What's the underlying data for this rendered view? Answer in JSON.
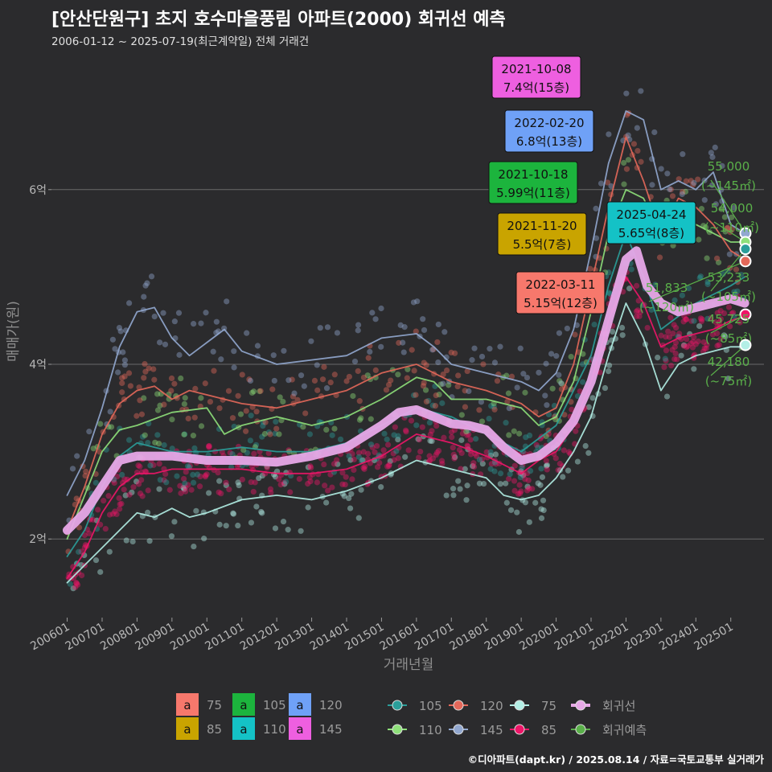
{
  "title": "[안산단원구] 초지 호수마을풍림 아파트(2000) 회귀선 예측",
  "subtitle": "2006-01-12 ~ 2025-07-19(최근계약일) 전체 거래건",
  "credit": "©디아파트(dapt.kr) / 2025.08.14 / 자료=국토교통부 실거래가",
  "chart_data": {
    "type": "line",
    "xlabel": "거래년월",
    "ylabel": "매매가(원)",
    "x_ticks": [
      "200601",
      "200701",
      "200801",
      "200901",
      "201001",
      "201101",
      "201201",
      "201301",
      "201401",
      "201501",
      "201601",
      "201701",
      "201801",
      "201901",
      "202001",
      "202101",
      "202201",
      "202301",
      "202401",
      "202501"
    ],
    "y_ticks": [
      {
        "value": 2,
        "label": "2억"
      },
      {
        "value": 4,
        "label": "4억"
      },
      {
        "value": 6,
        "label": "6억"
      }
    ],
    "ylim": [
      1.1,
      7.6
    ],
    "xlim": [
      2005.55,
      2025.95
    ],
    "grid": "horizontal",
    "series": [
      {
        "name": "75",
        "color": "#b3efe6",
        "points": [
          [
            2006.0,
            1.5
          ],
          [
            2006.5,
            1.7
          ],
          [
            2007.0,
            1.9
          ],
          [
            2007.5,
            2.1
          ],
          [
            2008.0,
            2.3
          ],
          [
            2008.5,
            2.25
          ],
          [
            2009.0,
            2.35
          ],
          [
            2009.5,
            2.25
          ],
          [
            2010.0,
            2.3
          ],
          [
            2011.0,
            2.45
          ],
          [
            2012.0,
            2.5
          ],
          [
            2013.0,
            2.45
          ],
          [
            2014.0,
            2.55
          ],
          [
            2015.0,
            2.7
          ],
          [
            2016.0,
            2.9
          ],
          [
            2017.0,
            2.8
          ],
          [
            2018.0,
            2.7
          ],
          [
            2018.5,
            2.5
          ],
          [
            2019.0,
            2.45
          ],
          [
            2019.5,
            2.5
          ],
          [
            2020.0,
            2.7
          ],
          [
            2020.5,
            3.0
          ],
          [
            2021.0,
            3.4
          ],
          [
            2021.5,
            4.1
          ],
          [
            2022.0,
            4.7
          ],
          [
            2022.5,
            4.3
          ],
          [
            2023.0,
            3.7
          ],
          [
            2023.5,
            4.0
          ],
          [
            2024.0,
            4.1
          ],
          [
            2024.5,
            4.15
          ],
          [
            2025.0,
            4.2
          ],
          [
            2025.4,
            4.2
          ]
        ]
      },
      {
        "name": "85",
        "color": "#ee1568",
        "points": [
          [
            2006.0,
            1.55
          ],
          [
            2006.5,
            1.85
          ],
          [
            2007.0,
            2.3
          ],
          [
            2007.5,
            2.6
          ],
          [
            2008.0,
            2.75
          ],
          [
            2008.5,
            2.75
          ],
          [
            2009.0,
            2.8
          ],
          [
            2010.0,
            2.8
          ],
          [
            2011.0,
            2.8
          ],
          [
            2012.0,
            2.75
          ],
          [
            2013.0,
            2.75
          ],
          [
            2014.0,
            2.8
          ],
          [
            2015.0,
            2.95
          ],
          [
            2016.0,
            3.2
          ],
          [
            2017.0,
            3.1
          ],
          [
            2018.0,
            2.95
          ],
          [
            2019.0,
            2.75
          ],
          [
            2019.5,
            2.9
          ],
          [
            2020.0,
            3.0
          ],
          [
            2020.5,
            3.3
          ],
          [
            2021.0,
            3.8
          ],
          [
            2021.5,
            4.5
          ],
          [
            2022.0,
            5.0
          ],
          [
            2022.5,
            4.7
          ],
          [
            2023.0,
            4.2
          ],
          [
            2023.5,
            4.3
          ],
          [
            2024.0,
            4.35
          ],
          [
            2024.5,
            4.4
          ],
          [
            2025.0,
            4.5
          ],
          [
            2025.4,
            4.55
          ]
        ]
      },
      {
        "name": "105",
        "color": "#2a9e9a",
        "points": [
          [
            2006.0,
            1.8
          ],
          [
            2006.5,
            2.1
          ],
          [
            2007.0,
            2.6
          ],
          [
            2007.5,
            2.95
          ],
          [
            2008.0,
            3.1
          ],
          [
            2009.0,
            3.0
          ],
          [
            2010.0,
            3.0
          ],
          [
            2011.0,
            3.05
          ],
          [
            2012.0,
            3.0
          ],
          [
            2013.0,
            3.0
          ],
          [
            2014.0,
            3.1
          ],
          [
            2015.0,
            3.3
          ],
          [
            2016.0,
            3.5
          ],
          [
            2017.0,
            3.4
          ],
          [
            2018.0,
            3.2
          ],
          [
            2019.0,
            3.0
          ],
          [
            2020.0,
            3.3
          ],
          [
            2021.0,
            4.1
          ],
          [
            2021.5,
            4.9
          ],
          [
            2022.0,
            5.5
          ],
          [
            2022.5,
            5.0
          ],
          [
            2023.0,
            4.4
          ],
          [
            2024.0,
            4.7
          ],
          [
            2025.0,
            4.9
          ],
          [
            2025.4,
            5.0
          ]
        ]
      },
      {
        "name": "110",
        "color": "#8ee07a",
        "points": [
          [
            2006.0,
            2.0
          ],
          [
            2006.5,
            2.5
          ],
          [
            2007.0,
            3.0
          ],
          [
            2007.5,
            3.25
          ],
          [
            2008.0,
            3.3
          ],
          [
            2009.0,
            3.45
          ],
          [
            2010.0,
            3.5
          ],
          [
            2010.5,
            3.2
          ],
          [
            2011.0,
            3.3
          ],
          [
            2012.0,
            3.4
          ],
          [
            2013.0,
            3.3
          ],
          [
            2014.0,
            3.4
          ],
          [
            2015.0,
            3.6
          ],
          [
            2016.0,
            3.85
          ],
          [
            2016.5,
            3.8
          ],
          [
            2017.0,
            3.6
          ],
          [
            2018.0,
            3.6
          ],
          [
            2019.0,
            3.5
          ],
          [
            2019.5,
            3.3
          ],
          [
            2020.0,
            3.4
          ],
          [
            2020.5,
            3.8
          ],
          [
            2021.0,
            4.6
          ],
          [
            2021.5,
            5.5
          ],
          [
            2022.0,
            6.0
          ],
          [
            2022.5,
            5.9
          ],
          [
            2023.0,
            5.5
          ],
          [
            2023.5,
            5.8
          ],
          [
            2024.0,
            5.6
          ],
          [
            2024.5,
            5.5
          ],
          [
            2025.0,
            5.4
          ],
          [
            2025.4,
            5.4
          ]
        ]
      },
      {
        "name": "120",
        "color": "#e4685a",
        "points": [
          [
            2006.0,
            2.1
          ],
          [
            2006.5,
            2.6
          ],
          [
            2007.0,
            3.2
          ],
          [
            2007.5,
            3.55
          ],
          [
            2008.0,
            3.7
          ],
          [
            2008.5,
            3.75
          ],
          [
            2009.0,
            3.6
          ],
          [
            2009.5,
            3.7
          ],
          [
            2010.0,
            3.65
          ],
          [
            2011.0,
            3.55
          ],
          [
            2012.0,
            3.5
          ],
          [
            2013.0,
            3.6
          ],
          [
            2014.0,
            3.7
          ],
          [
            2015.0,
            3.9
          ],
          [
            2016.0,
            4.0
          ],
          [
            2017.0,
            3.8
          ],
          [
            2018.0,
            3.7
          ],
          [
            2019.0,
            3.55
          ],
          [
            2019.5,
            3.4
          ],
          [
            2020.0,
            3.5
          ],
          [
            2020.5,
            4.0
          ],
          [
            2021.0,
            4.9
          ],
          [
            2021.5,
            5.8
          ],
          [
            2022.0,
            6.6
          ],
          [
            2022.5,
            6.1
          ],
          [
            2023.0,
            5.5
          ],
          [
            2023.5,
            5.9
          ],
          [
            2024.0,
            5.8
          ],
          [
            2024.5,
            5.6
          ],
          [
            2025.0,
            5.3
          ],
          [
            2025.4,
            5.2
          ]
        ]
      },
      {
        "name": "145",
        "color": "#92a8d0",
        "points": [
          [
            2006.0,
            2.5
          ],
          [
            2006.5,
            2.9
          ],
          [
            2007.0,
            3.5
          ],
          [
            2007.5,
            4.2
          ],
          [
            2008.0,
            4.6
          ],
          [
            2008.5,
            4.65
          ],
          [
            2009.0,
            4.3
          ],
          [
            2009.5,
            4.1
          ],
          [
            2010.0,
            4.25
          ],
          [
            2010.5,
            4.4
          ],
          [
            2011.0,
            4.15
          ],
          [
            2012.0,
            4.0
          ],
          [
            2013.0,
            4.05
          ],
          [
            2014.0,
            4.1
          ],
          [
            2015.0,
            4.3
          ],
          [
            2016.0,
            4.35
          ],
          [
            2016.5,
            4.2
          ],
          [
            2017.0,
            4.0
          ],
          [
            2018.0,
            3.9
          ],
          [
            2019.0,
            3.8
          ],
          [
            2019.5,
            3.7
          ],
          [
            2020.0,
            3.9
          ],
          [
            2020.5,
            4.4
          ],
          [
            2021.0,
            5.3
          ],
          [
            2021.5,
            6.3
          ],
          [
            2022.0,
            6.9
          ],
          [
            2022.5,
            6.8
          ],
          [
            2023.0,
            6.0
          ],
          [
            2023.5,
            6.1
          ],
          [
            2024.0,
            6.0
          ],
          [
            2024.5,
            6.2
          ],
          [
            2025.0,
            5.6
          ],
          [
            2025.4,
            5.5
          ]
        ]
      },
      {
        "name": "회귀선",
        "color": "#e7a8e8",
        "points": [
          [
            2006.0,
            2.1
          ],
          [
            2006.5,
            2.3
          ],
          [
            2007.0,
            2.6
          ],
          [
            2007.5,
            2.9
          ],
          [
            2008.0,
            2.95
          ],
          [
            2009.0,
            2.95
          ],
          [
            2010.0,
            2.9
          ],
          [
            2011.0,
            2.9
          ],
          [
            2012.0,
            2.88
          ],
          [
            2013.0,
            2.95
          ],
          [
            2014.0,
            3.05
          ],
          [
            2015.0,
            3.3
          ],
          [
            2015.5,
            3.45
          ],
          [
            2016.0,
            3.48
          ],
          [
            2016.5,
            3.4
          ],
          [
            2017.0,
            3.32
          ],
          [
            2017.5,
            3.3
          ],
          [
            2018.0,
            3.25
          ],
          [
            2018.5,
            3.05
          ],
          [
            2019.0,
            2.9
          ],
          [
            2019.5,
            2.95
          ],
          [
            2020.0,
            3.1
          ],
          [
            2020.5,
            3.35
          ],
          [
            2021.0,
            3.8
          ],
          [
            2021.5,
            4.5
          ],
          [
            2022.0,
            5.2
          ],
          [
            2022.3,
            5.3
          ],
          [
            2022.6,
            4.9
          ],
          [
            2023.0,
            4.7
          ],
          [
            2023.5,
            4.6
          ],
          [
            2024.0,
            4.65
          ],
          [
            2024.5,
            4.7
          ],
          [
            2025.0,
            4.75
          ],
          [
            2025.4,
            4.7
          ]
        ]
      }
    ],
    "annotations": [
      {
        "date": "2021-10-08",
        "price": "7.4억(15층)",
        "color": "#ee5fe0",
        "x": 2021.77,
        "y": 7.4
      },
      {
        "date": "2022-02-20",
        "price": "6.8억(13층)",
        "color": "#6fa1f7",
        "x": 2022.14,
        "y": 6.8
      },
      {
        "date": "2021-10-18",
        "price": "5.99억(11층)",
        "color": "#1cb43d",
        "x": 2021.79,
        "y": 5.99
      },
      {
        "date": "2021-11-20",
        "price": "5.5억(7층)",
        "color": "#c9a400",
        "x": 2021.88,
        "y": 5.5
      },
      {
        "date": "2025-04-24",
        "price": "5.65억(8층)",
        "color": "#14c2c6",
        "x": 2025.31,
        "y": 5.65
      },
      {
        "date": "2022-03-11",
        "price": "5.15억(12층)",
        "color": "#f7786c",
        "x": 2022.19,
        "y": 5.15
      }
    ],
    "predictions": [
      {
        "value": "55,000",
        "area": "(~145㎡)",
        "color": "#92a8d0",
        "y": 5.5
      },
      {
        "value": "54,000",
        "area": "(~110㎡)",
        "color": "#8ee07a",
        "y": 5.4
      },
      {
        "value": "53,233",
        "area": "(~105㎡)",
        "color": "#2a9e9a",
        "y": 5.32
      },
      {
        "value": "51,833",
        "area": "(~120㎡)",
        "color": "#e4685a",
        "y": 5.18
      },
      {
        "value": "45,725",
        "area": "(~85㎡)",
        "color": "#ee1568",
        "y": 4.57
      },
      {
        "value": "42,180",
        "area": "(~75㎡)",
        "color": "#b3efe6",
        "y": 4.22
      }
    ],
    "legend_label_boxes": [
      {
        "name": "75",
        "color": "#f7786c"
      },
      {
        "name": "85",
        "color": "#c9a400"
      },
      {
        "name": "105",
        "color": "#1cb43d"
      },
      {
        "name": "110",
        "color": "#14c2c6"
      },
      {
        "name": "120",
        "color": "#6fa1f7"
      },
      {
        "name": "145",
        "color": "#ee5fe0"
      }
    ],
    "legend_label_glyph": "a",
    "legend_lines": [
      {
        "name": "105",
        "color": "#2a9e9a"
      },
      {
        "name": "110",
        "color": "#8ee07a"
      },
      {
        "name": "120",
        "color": "#e4685a"
      },
      {
        "name": "145",
        "color": "#92a8d0"
      },
      {
        "name": "75",
        "color": "#b3efe6"
      },
      {
        "name": "85",
        "color": "#ee1568"
      },
      {
        "name": "회귀선",
        "color": "#e7a8e8"
      },
      {
        "name": "회귀예측",
        "color": "#5ab04a"
      }
    ]
  }
}
